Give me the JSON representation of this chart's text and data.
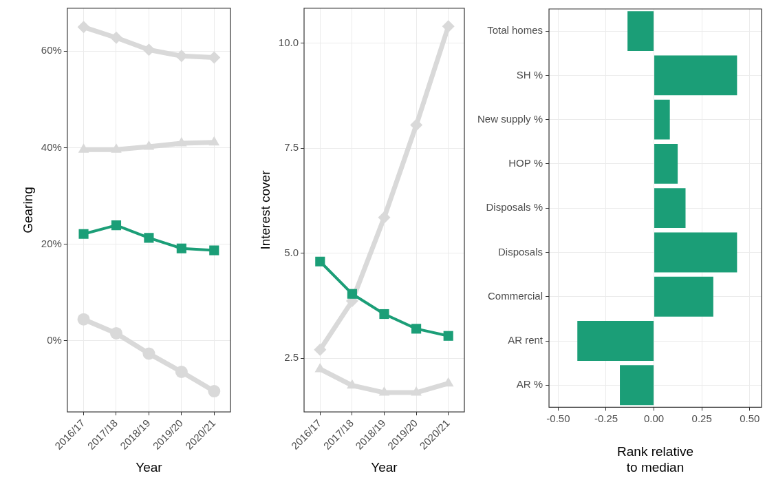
{
  "chart_data": [
    {
      "type": "line",
      "xlabel": "Year",
      "ylabel": "Gearing",
      "categories": [
        "2016/17",
        "2017/18",
        "2018/19",
        "2019/20",
        "2020/21"
      ],
      "grid": true,
      "ylim": [
        -14.8,
        68.9
      ],
      "yticks": [
        {
          "value": 0,
          "label": "0%"
        },
        {
          "value": 20,
          "label": "20%"
        },
        {
          "value": 40,
          "label": "40%"
        },
        {
          "value": 60,
          "label": "60%"
        }
      ],
      "series": [
        {
          "color": "#d9d9d9",
          "marker": "diamond",
          "values": [
            65,
            62.8,
            60.3,
            59,
            58.7
          ]
        },
        {
          "color": "#d9d9d9",
          "marker": "triangle",
          "values": [
            39.6,
            39.6,
            40.2,
            40.9,
            41.1
          ]
        },
        {
          "color": "#d9d9d9",
          "marker": "circle",
          "values": [
            4.4,
            1.5,
            -2.7,
            -6.5,
            -10.5
          ]
        },
        {
          "color": "#1b9e77",
          "marker": "square",
          "values": [
            22.1,
            23.9,
            21.3,
            19.1,
            18.7
          ]
        }
      ]
    },
    {
      "type": "line",
      "xlabel": "Year",
      "ylabel": "Interest cover",
      "categories": [
        "2016/17",
        "2017/18",
        "2018/19",
        "2019/20",
        "2020/21"
      ],
      "grid": true,
      "ylim": [
        1.22,
        10.83
      ],
      "yticks": [
        2.5,
        {
          "value": 5,
          "label": "5.0"
        },
        7.5,
        {
          "value": 10,
          "label": "10.0"
        }
      ],
      "series": [
        {
          "color": "#d9d9d9",
          "marker": "diamond",
          "values": [
            2.7,
            3.86,
            5.85,
            8.05,
            10.4
          ]
        },
        {
          "color": "#d9d9d9",
          "marker": "triangle",
          "values": [
            2.24,
            1.85,
            1.68,
            1.68,
            1.9
          ]
        },
        {
          "color": "#1b9e77",
          "marker": "square",
          "values": [
            4.8,
            4.03,
            3.55,
            3.2,
            3.03
          ]
        }
      ]
    },
    {
      "type": "bar",
      "orientation": "horizontal",
      "xlabel": "Rank relative\nto median",
      "grid": true,
      "categories": [
        "Total homes",
        "SH %",
        "New supply %",
        "HOP %",
        "Disposals %",
        "Disposals",
        "Commercial",
        "AR rent",
        "AR %"
      ],
      "values": [
        -0.138,
        0.434,
        0.083,
        0.124,
        0.165,
        0.434,
        0.31,
        -0.4,
        -0.178
      ],
      "color": "#1b9e77",
      "xlim": [
        -0.548,
        0.562
      ],
      "xticks": [
        {
          "value": -0.5,
          "label": "-0.50"
        },
        {
          "value": -0.25,
          "label": "-0.25"
        },
        {
          "value": 0,
          "label": "0.00"
        },
        {
          "value": 0.25,
          "label": "0.25"
        },
        {
          "value": 0.5,
          "label": "0.50"
        }
      ]
    }
  ]
}
